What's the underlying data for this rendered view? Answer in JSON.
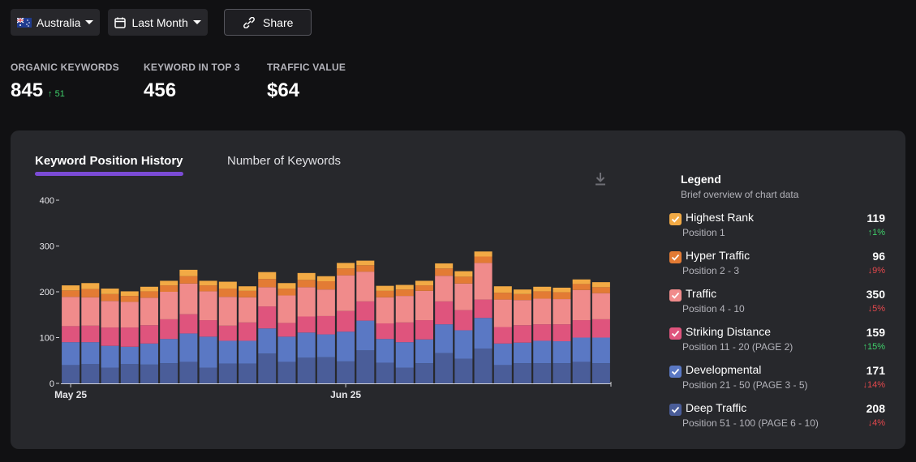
{
  "toolbar": {
    "country": "Australia",
    "period": "Last Month",
    "share_label": "Share"
  },
  "metrics": [
    {
      "label": "ORGANIC KEYWORDS",
      "value": "845",
      "delta": "51"
    },
    {
      "label": "KEYWORD IN TOP 3",
      "value": "456"
    },
    {
      "label": "TRAFFIC VALUE",
      "value": "$64"
    }
  ],
  "tabs": {
    "active": "Keyword Position History",
    "inactive": "Number of Keywords"
  },
  "legend": {
    "title": "Legend",
    "subtitle": "Brief overview of chart data",
    "items": [
      {
        "name": "Highest Rank",
        "position": "Position 1",
        "value": "119",
        "change": "1%",
        "direction": "up",
        "color": "#f2aa45"
      },
      {
        "name": "Hyper Traffic",
        "position": "Position 2 - 3",
        "value": "96",
        "change": "9%",
        "direction": "down",
        "color": "#e37b34"
      },
      {
        "name": "Traffic",
        "position": "Position 4 - 10",
        "value": "350",
        "change": "5%",
        "direction": "down",
        "color": "#f08b8b"
      },
      {
        "name": "Striking Distance",
        "position": "Position 11 - 20 (PAGE 2)",
        "value": "159",
        "change": "15%",
        "direction": "up",
        "color": "#df547d"
      },
      {
        "name": "Developmental",
        "position": "Position 21 - 50 (PAGE 3 - 5)",
        "value": "171",
        "change": "14%",
        "direction": "down",
        "color": "#5a78c4"
      },
      {
        "name": "Deep Traffic",
        "position": "Position 51 - 100 (PAGE 6 - 10)",
        "value": "208",
        "change": "4%",
        "direction": "down",
        "color": "#4a5d99"
      }
    ]
  },
  "chart_data": {
    "type": "bar",
    "stacked": true,
    "ylim": [
      0,
      400
    ],
    "yticks": [
      0,
      100,
      200,
      300,
      400
    ],
    "xtick_labels": [
      {
        "label": "May 25",
        "index": 0
      },
      {
        "label": "Jun 25",
        "index": 14
      }
    ],
    "colors": [
      "#4a5d99",
      "#5a78c4",
      "#df547d",
      "#f08b8b",
      "#e37b34",
      "#f2aa45"
    ],
    "series": [
      {
        "name": "Deep Traffic",
        "values": [
          40,
          42,
          34,
          42,
          41,
          44,
          47,
          34,
          43,
          43,
          65,
          47,
          56,
          57,
          48,
          72,
          45,
          34,
          44,
          66,
          54,
          76,
          40,
          44,
          44,
          44,
          47,
          44
        ]
      },
      {
        "name": "Developmental",
        "values": [
          50,
          48,
          48,
          38,
          46,
          53,
          62,
          68,
          50,
          50,
          55,
          55,
          55,
          50,
          65,
          65,
          52,
          56,
          52,
          63,
          62,
          67,
          47,
          45,
          49,
          48,
          53,
          56
        ]
      },
      {
        "name": "Striking Distance",
        "values": [
          35,
          36,
          40,
          42,
          40,
          43,
          42,
          36,
          33,
          40,
          48,
          30,
          35,
          40,
          45,
          42,
          34,
          43,
          42,
          50,
          44,
          40,
          36,
          38,
          36,
          37,
          38,
          40
        ]
      },
      {
        "name": "Traffic",
        "values": [
          64,
          62,
          58,
          56,
          60,
          60,
          67,
          63,
          63,
          55,
          42,
          60,
          64,
          58,
          78,
          65,
          57,
          58,
          64,
          56,
          58,
          80,
          60,
          55,
          56,
          55,
          66,
          57
        ]
      },
      {
        "name": "Hyper Traffic",
        "values": [
          14,
          18,
          15,
          13,
          14,
          14,
          16,
          13,
          18,
          14,
          18,
          15,
          16,
          18,
          15,
          14,
          14,
          14,
          12,
          16,
          15,
          14,
          15,
          13,
          16,
          15,
          13,
          13
        ]
      },
      {
        "name": "Highest Rank",
        "values": [
          11,
          13,
          12,
          10,
          10,
          10,
          14,
          10,
          15,
          10,
          15,
          12,
          15,
          11,
          12,
          10,
          11,
          10,
          10,
          11,
          12,
          11,
          14,
          10,
          10,
          10,
          10,
          11
        ]
      }
    ]
  }
}
